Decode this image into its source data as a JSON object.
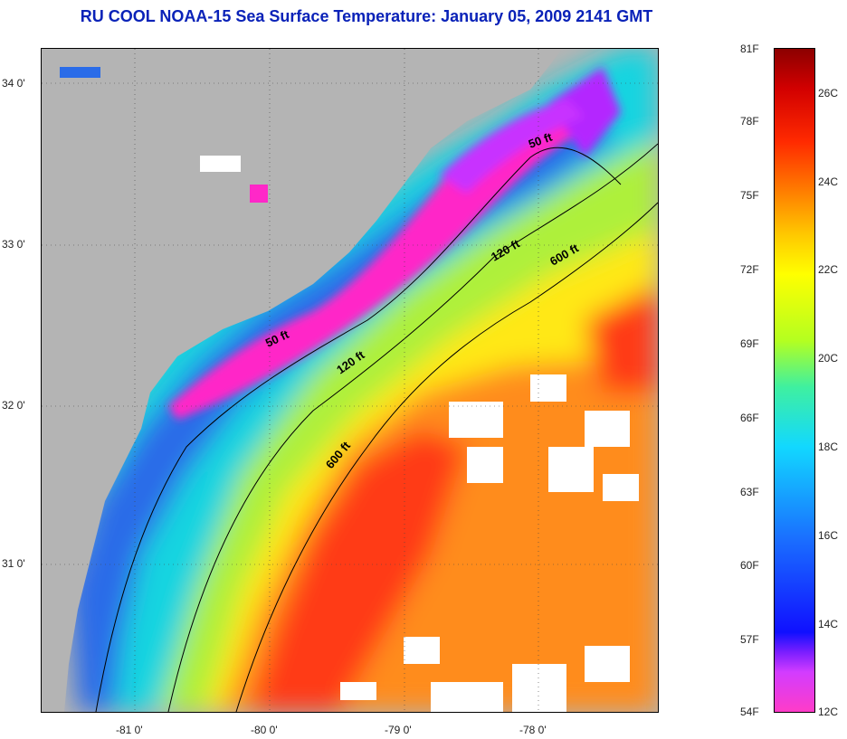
{
  "title": "RU COOL  NOAA-15  Sea Surface Temperature:  January 05, 2009 2141 GMT",
  "map": {
    "lat_labels": [
      "34 0'",
      "33 0'",
      "32 0'",
      "31 0'"
    ],
    "lon_labels": [
      "-81 0'",
      "-80 0'",
      "-79 0'",
      "-78 0'"
    ],
    "isobath_labels": [
      "50 ft",
      "120 ft",
      "600 ft",
      "50 ft",
      "120 ft",
      "600 ft"
    ],
    "land_color": "#b4b4b4",
    "cloud_color": "#ffffff"
  },
  "legend": {
    "fahrenheit": [
      "81F",
      "78F",
      "75F",
      "72F",
      "69F",
      "66F",
      "63F",
      "60F",
      "57F",
      "54F"
    ],
    "celsius": [
      "26C",
      "24C",
      "22C",
      "20C",
      "18C",
      "16C",
      "14C",
      "12C"
    ]
  }
}
